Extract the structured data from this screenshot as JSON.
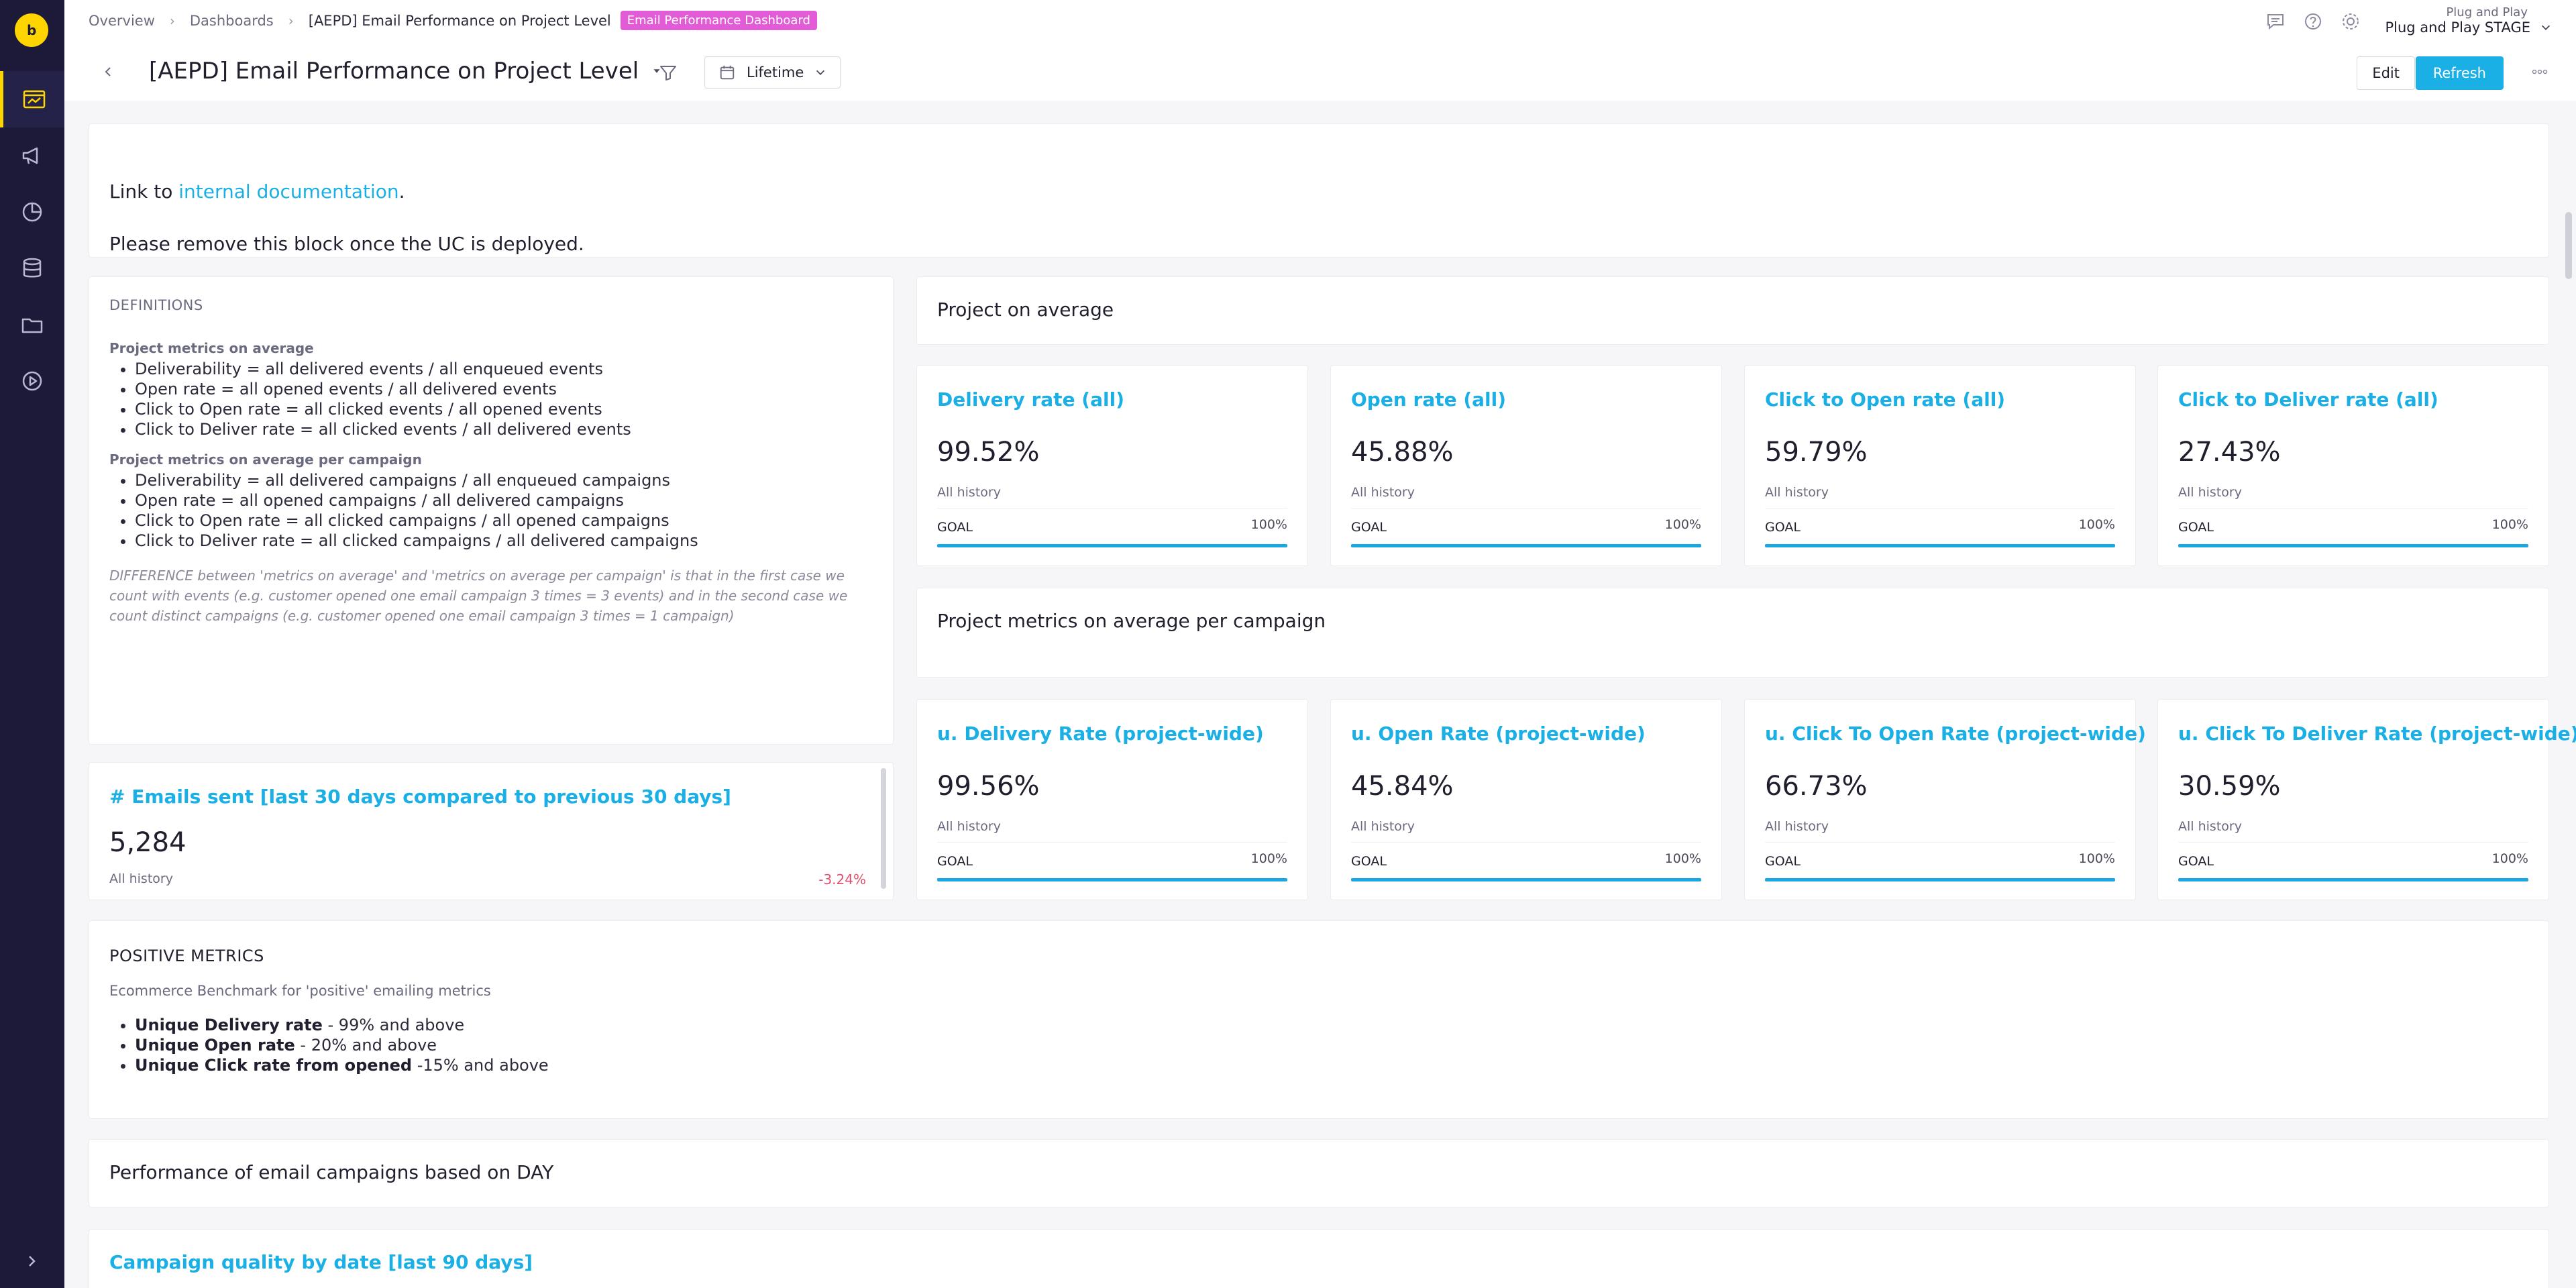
{
  "nav": {
    "items": [
      {
        "icon": "dashboard-icon",
        "active": true
      },
      {
        "icon": "megaphone-icon",
        "active": false
      },
      {
        "icon": "pie-chart-icon",
        "active": false
      },
      {
        "icon": "database-icon",
        "active": false
      },
      {
        "icon": "folder-icon",
        "active": false
      },
      {
        "icon": "play-target-icon",
        "active": false
      }
    ]
  },
  "breadcrumb": {
    "items": [
      "Overview",
      "Dashboards",
      "[AEPD] Email Performance on Project Level"
    ],
    "tag": "Email Performance Dashboard"
  },
  "project": {
    "org": "Plug and Play",
    "name": "Plug and Play STAGE"
  },
  "dashboard": {
    "title": "[AEPD] Email Performance on Project Level",
    "date_range": "Lifetime",
    "edit_label": "Edit",
    "refresh_label": "Refresh"
  },
  "info": {
    "line1_prefix": "Link to ",
    "line1_link": "internal documentation",
    "line1_suffix": ".",
    "line2": "Please remove this block once the UC is deployed."
  },
  "definitions": {
    "heading": "DEFINITIONS",
    "group1_title": "Project metrics on average",
    "group1": [
      "Deliverability = all delivered events / all enqueued events",
      "Open rate = all opened events / all delivered events",
      "Click to Open rate = all clicked events / all opened events",
      "Click to Deliver rate = all clicked events / all delivered events"
    ],
    "group2_title": "Project metrics on average per campaign",
    "group2": [
      "Deliverability = all delivered campaigns / all enqueued campaigns",
      "Open rate = all opened campaigns / all delivered campaigns",
      "Click to Open rate = all clicked campaigns / all opened campaigns",
      "Click to Deliver rate = all clicked campaigns / all delivered campaigns"
    ],
    "note": "DIFFERENCE between 'metrics on average' and 'metrics on average per campaign' is that in the first case we count with events (e.g. customer opened one email campaign 3 times = 3 events) and in the second case we count distinct campaigns (e.g. customer opened one email campaign 3 times = 1 campaign)"
  },
  "emails_sent": {
    "title": "# Emails sent [last 30 days compared to previous 30 days]",
    "value": "5,284",
    "history": "All history",
    "delta": "-3.24%"
  },
  "section_avg": "Project on average",
  "section_per_campaign": "Project metrics on average per campaign",
  "metrics_avg": [
    {
      "title": "Delivery rate (all)",
      "value": "99.52%",
      "history": "All history",
      "goal": "GOAL",
      "goal_pct": "100%"
    },
    {
      "title": "Open rate (all)",
      "value": "45.88%",
      "history": "All history",
      "goal": "GOAL",
      "goal_pct": "100%"
    },
    {
      "title": "Click to Open rate (all)",
      "value": "59.79%",
      "history": "All history",
      "goal": "GOAL",
      "goal_pct": "100%"
    },
    {
      "title": "Click to Deliver rate (all)",
      "value": "27.43%",
      "history": "All history",
      "goal": "GOAL",
      "goal_pct": "100%"
    }
  ],
  "metrics_campaign": [
    {
      "title": "u. Delivery Rate (project-wide)",
      "value": "99.56%",
      "history": "All history",
      "goal": "GOAL",
      "goal_pct": "100%"
    },
    {
      "title": "u. Open Rate (project-wide)",
      "value": "45.84%",
      "history": "All history",
      "goal": "GOAL",
      "goal_pct": "100%"
    },
    {
      "title": "u. Click To Open Rate (project-wide)",
      "value": "66.73%",
      "history": "All history",
      "goal": "GOAL",
      "goal_pct": "100%"
    },
    {
      "title": "u. Click To Deliver Rate (project-wide)",
      "value": "30.59%",
      "history": "All history",
      "goal": "GOAL",
      "goal_pct": "100%"
    }
  ],
  "positive": {
    "heading": "POSITIVE METRICS",
    "sub": "Ecommerce Benchmark for 'positive' emailing metrics",
    "items": [
      {
        "bold": "Unique Delivery rate",
        "rest": " - 99% and above"
      },
      {
        "bold": "Unique Open rate",
        "rest": " - 20% and above"
      },
      {
        "bold": "Unique Click rate from opened",
        "rest": " -15% and above"
      }
    ]
  },
  "performance_title": "Performance of email campaigns based on DAY",
  "quality_title": "Campaign quality by date [last 90 days]",
  "colors": {
    "sidebar": "#1c1a38",
    "accent": "#1ab0e6",
    "brand": "#ffd500",
    "tag": "#e25cd8",
    "negative": "#e0506a"
  }
}
